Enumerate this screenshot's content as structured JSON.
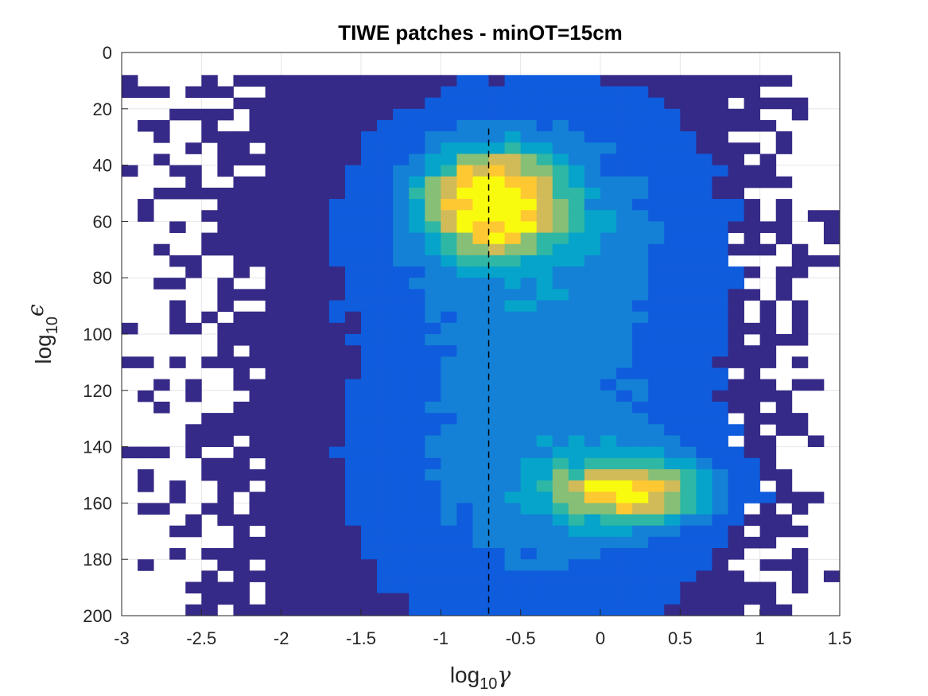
{
  "chart_data": {
    "type": "heatmap",
    "title": "TIWE patches - minOT=15cm",
    "xlabel": {
      "base": "log",
      "sub": "10",
      "sym": "γ"
    },
    "ylabel": {
      "base": "log",
      "sub": "10",
      "sym": "ϵ"
    },
    "xlim": [
      -3,
      1.5
    ],
    "ylim": [
      0,
      200
    ],
    "y_reversed": true,
    "grid": true,
    "xticks": [
      "-3",
      "-2.5",
      "-2",
      "-1.5",
      "-1",
      "-0.5",
      "0",
      "0.5",
      "1",
      "1.5"
    ],
    "yticks": [
      "0",
      "20",
      "40",
      "60",
      "80",
      "100",
      "120",
      "140",
      "160",
      "180",
      "200"
    ],
    "colormap": "parula",
    "colors": [
      "#352a87",
      "#0f5cdd",
      "#1481d6",
      "#06a4ca",
      "#2eb7a4",
      "#87bf77",
      "#d1bb59",
      "#fec832",
      "#f9fb0e"
    ],
    "reference_line": {
      "x": -0.7,
      "style": "dashed",
      "color": "#000000"
    },
    "blobs": [
      {
        "x": -0.68,
        "y": 53,
        "amplitude": 1.0,
        "sx": 0.28,
        "sy": 12
      },
      {
        "x": 0.2,
        "y": 156,
        "amplitude": 0.82,
        "sx": 0.33,
        "sy": 8
      }
    ],
    "bins": {
      "x_width": 0.1,
      "y_height": 4
    }
  }
}
